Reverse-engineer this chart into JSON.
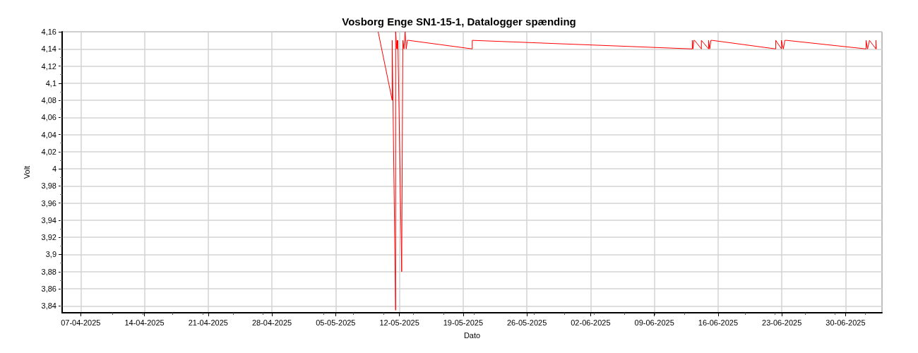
{
  "chart_data": {
    "type": "line",
    "title": "Vosborg Enge SN1-15-1, Datalogger spænding",
    "xlabel": "Dato",
    "ylabel": "Volt",
    "x": [
      "2025-05-09T16:00",
      "2025-05-11T05:00",
      "2025-05-11T05:00",
      "2025-05-11T14:00",
      "2025-05-11T14:00",
      "2025-05-11T17:00",
      "2025-05-11T18:00",
      "2025-05-11T19:00",
      "2025-05-11T20:00",
      "2025-05-12T06:00",
      "2025-05-12T09:00",
      "2025-05-12T12:00",
      "2025-05-12T15:00",
      "2025-05-12T18:00",
      "2025-05-12T21:00",
      "2025-05-13T00:00",
      "2025-05-20T00:00",
      "2025-05-20T00:00",
      "2025-06-13T04:00",
      "2025-06-13T04:00",
      "2025-06-13T06:00",
      "2025-06-13T08:00",
      "2025-06-13T10:00",
      "2025-06-14T04:00",
      "2025-06-14T04:00",
      "2025-06-14T23:00",
      "2025-06-14T23:00",
      "2025-06-15T02:00",
      "2025-06-15T05:00",
      "2025-06-15T08:00",
      "2025-06-22T08:00",
      "2025-06-22T08:00",
      "2025-06-22T23:00",
      "2025-06-22T23:00",
      "2025-06-23T04:00",
      "2025-06-23T08:00",
      "2025-06-23T12:00",
      "2025-07-02T06:00",
      "2025-07-02T06:00",
      "2025-07-02T10:00",
      "2025-07-02T15:00",
      "2025-07-03T08:00",
      "2025-07-03T08:00",
      "2025-07-03T09:00"
    ],
    "series": [
      {
        "color": "#ff0000",
        "values": [
          4.16,
          4.08,
          4.15,
          3.835,
          4.16,
          4.14,
          4.15,
          4.14,
          4.15,
          3.88,
          4.15,
          4.14,
          4.16,
          4.14,
          4.15,
          4.15,
          4.14,
          4.15,
          4.14,
          4.15,
          4.14,
          4.15,
          4.15,
          4.14,
          4.15,
          4.14,
          4.15,
          4.14,
          4.15,
          4.15,
          4.14,
          4.15,
          4.14,
          4.15,
          4.14,
          4.15,
          4.15,
          4.14,
          4.15,
          4.14,
          4.15,
          4.14,
          4.15,
          4.14
        ]
      }
    ],
    "xlim": [
      "2025-04-04T23:00",
      "2025-07-04T00:00"
    ],
    "xticks": [
      {
        "value": "2025-04-07",
        "label": "07-04-2025"
      },
      {
        "value": "2025-04-14",
        "label": "14-04-2025"
      },
      {
        "value": "2025-04-21",
        "label": "21-04-2025"
      },
      {
        "value": "2025-04-28",
        "label": "28-04-2025"
      },
      {
        "value": "2025-05-05",
        "label": "05-05-2025"
      },
      {
        "value": "2025-05-12",
        "label": "12-05-2025"
      },
      {
        "value": "2025-05-19",
        "label": "19-05-2025"
      },
      {
        "value": "2025-05-26",
        "label": "26-05-2025"
      },
      {
        "value": "2025-06-02",
        "label": "02-06-2025"
      },
      {
        "value": "2025-06-09",
        "label": "09-06-2025"
      },
      {
        "value": "2025-06-16",
        "label": "16-06-2025"
      },
      {
        "value": "2025-06-23",
        "label": "23-06-2025"
      },
      {
        "value": "2025-06-30",
        "label": "30-06-2025"
      }
    ],
    "ylim": [
      3.832,
      4.16
    ],
    "yticks": [
      {
        "value": 3.84,
        "label": "3,84"
      },
      {
        "value": 3.86,
        "label": "3,86"
      },
      {
        "value": 3.88,
        "label": "3,88"
      },
      {
        "value": 3.9,
        "label": "3,9"
      },
      {
        "value": 3.92,
        "label": "3,92"
      },
      {
        "value": 3.94,
        "label": "3,94"
      },
      {
        "value": 3.96,
        "label": "3,96"
      },
      {
        "value": 3.98,
        "label": "3,98"
      },
      {
        "value": 4,
        "label": "4"
      },
      {
        "value": 4.02,
        "label": "4,02"
      },
      {
        "value": 4.04,
        "label": "4,04"
      },
      {
        "value": 4.06,
        "label": "4,06"
      },
      {
        "value": 4.08,
        "label": "4,08"
      },
      {
        "value": 4.1,
        "label": "4,1"
      },
      {
        "value": 4.12,
        "label": "4,12"
      },
      {
        "value": 4.14,
        "label": "4,14"
      },
      {
        "value": 4.16,
        "label": "4,16"
      }
    ],
    "grid": true,
    "marker": "none",
    "line_style": "solid"
  }
}
